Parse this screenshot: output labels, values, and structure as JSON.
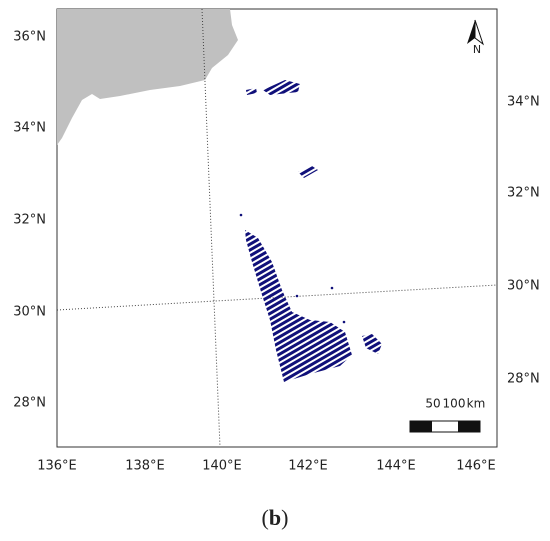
{
  "map": {
    "left_labels": [
      "36°N",
      "34°N",
      "32°N",
      "30°N",
      "28°N"
    ],
    "right_labels": [
      "34°N",
      "32°N",
      "30°N",
      "28°N"
    ],
    "bottom_labels": [
      "136°E",
      "138°E",
      "140°E",
      "142°E",
      "144°E",
      "146°E"
    ],
    "north_label": "N",
    "scale_bar": {
      "labels": [
        "50",
        "100",
        "km"
      ]
    }
  },
  "caption": {
    "open": "(",
    "letter": "b",
    "close": ")"
  }
}
